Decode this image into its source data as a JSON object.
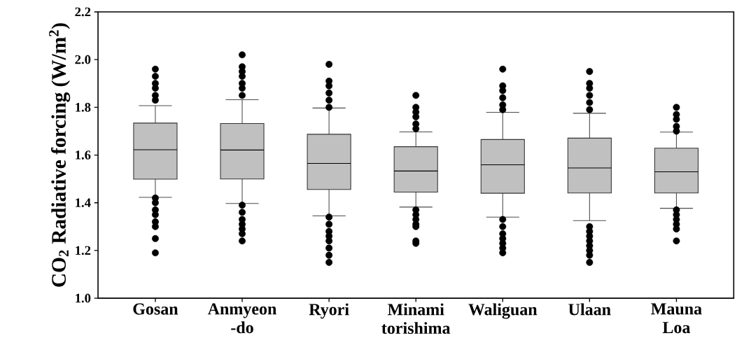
{
  "chart_data": {
    "type": "box",
    "categories": [
      "Gosan",
      "Anmyeon -do",
      "Ryori",
      "Minami torishima",
      "Waliguan",
      "Ulaan",
      "Mauna Loa"
    ],
    "ylabel": "CO$_{2}$ Radiative forcing (W/m$^{2}$)",
    "ylim": [
      1.0,
      2.2
    ],
    "yticks": [
      {
        "value": 1.0,
        "label": "1.0"
      },
      {
        "value": 1.2,
        "label": "1.2"
      },
      {
        "value": 1.4,
        "label": "1.4"
      },
      {
        "value": 1.6,
        "label": "1.6"
      },
      {
        "value": 1.8,
        "label": "1.8"
      },
      {
        "value": 2.0,
        "label": "2.0"
      },
      {
        "value": 2.2,
        "label": "2.2"
      }
    ],
    "color": "#c0c0c0",
    "marker": "circle",
    "grid": false,
    "boxes": [
      {
        "low": 1.423,
        "q1": 1.499,
        "median": 1.622,
        "q3": 1.734,
        "high": 1.807,
        "outliers": [
          1.96,
          1.93,
          1.9,
          1.88,
          1.85,
          1.83,
          1.42,
          1.4,
          1.37,
          1.35,
          1.32,
          1.3,
          1.25,
          1.19
        ]
      },
      {
        "low": 1.397,
        "q1": 1.5,
        "median": 1.621,
        "q3": 1.732,
        "high": 1.832,
        "outliers": [
          2.02,
          1.97,
          1.95,
          1.93,
          1.9,
          1.88,
          1.85,
          1.39,
          1.36,
          1.33,
          1.31,
          1.29,
          1.27,
          1.24
        ]
      },
      {
        "low": 1.345,
        "q1": 1.456,
        "median": 1.565,
        "q3": 1.687,
        "high": 1.797,
        "outliers": [
          1.98,
          1.91,
          1.89,
          1.86,
          1.83,
          1.8,
          1.34,
          1.31,
          1.28,
          1.26,
          1.24,
          1.21,
          1.18,
          1.15
        ]
      },
      {
        "low": 1.382,
        "q1": 1.445,
        "median": 1.533,
        "q3": 1.635,
        "high": 1.697,
        "outliers": [
          1.85,
          1.8,
          1.78,
          1.76,
          1.73,
          1.71,
          1.37,
          1.35,
          1.33,
          1.31,
          1.3,
          1.24,
          1.23
        ]
      },
      {
        "low": 1.34,
        "q1": 1.44,
        "median": 1.559,
        "q3": 1.665,
        "high": 1.779,
        "outliers": [
          1.96,
          1.89,
          1.87,
          1.84,
          1.81,
          1.79,
          1.33,
          1.3,
          1.27,
          1.25,
          1.23,
          1.21,
          1.19
        ]
      },
      {
        "low": 1.325,
        "q1": 1.441,
        "median": 1.546,
        "q3": 1.671,
        "high": 1.775,
        "outliers": [
          1.95,
          1.9,
          1.88,
          1.85,
          1.82,
          1.79,
          1.3,
          1.28,
          1.26,
          1.24,
          1.22,
          1.2,
          1.18,
          1.15
        ]
      },
      {
        "low": 1.377,
        "q1": 1.441,
        "median": 1.53,
        "q3": 1.629,
        "high": 1.696,
        "outliers": [
          1.8,
          1.77,
          1.75,
          1.72,
          1.7,
          1.37,
          1.35,
          1.33,
          1.31,
          1.29,
          1.24
        ]
      }
    ]
  }
}
